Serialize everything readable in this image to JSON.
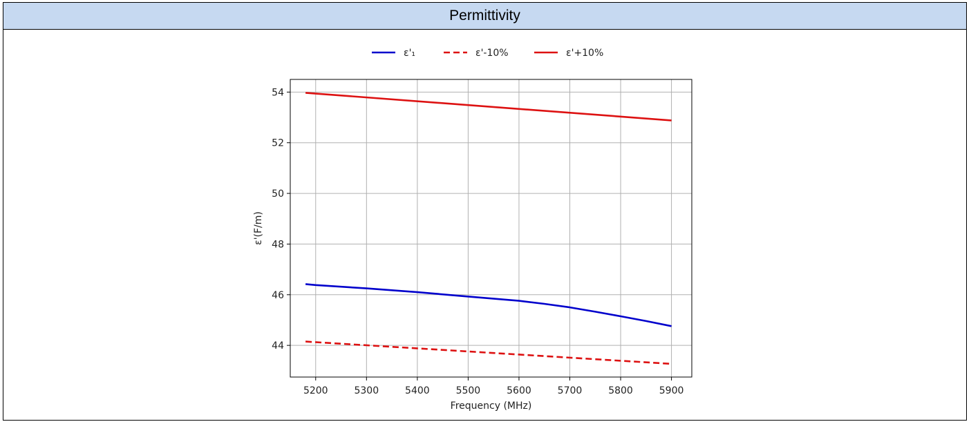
{
  "panel": {
    "title": "Permittivity",
    "header_bg": "#c6d9f1"
  },
  "chart_data": {
    "type": "line",
    "title": "",
    "xlabel": "Frequency (MHz)",
    "ylabel": "ε'(F/m)",
    "xlim": [
      5150,
      5940
    ],
    "ylim": [
      42.75,
      54.5
    ],
    "xticks": [
      5200,
      5300,
      5400,
      5500,
      5600,
      5700,
      5800,
      5900
    ],
    "yticks": [
      44,
      46,
      48,
      50,
      52,
      54
    ],
    "grid": true,
    "legend_position": "top-center",
    "legend_ncol": 3,
    "series": [
      {
        "name": "ε'₁",
        "color": "#0000cc",
        "dash": "solid",
        "x": [
          5180,
          5200,
          5300,
          5400,
          5500,
          5600,
          5650,
          5700,
          5750,
          5800,
          5850,
          5900
        ],
        "y": [
          46.42,
          46.38,
          46.25,
          46.1,
          45.93,
          45.76,
          45.64,
          45.5,
          45.33,
          45.15,
          44.96,
          44.76
        ]
      },
      {
        "name": "ε'-10%",
        "color": "#dd1111",
        "dash": "dashed",
        "x": [
          5180,
          5900
        ],
        "y": [
          44.15,
          43.27
        ]
      },
      {
        "name": "ε'+10%",
        "color": "#dd1111",
        "dash": "solid",
        "x": [
          5180,
          5900
        ],
        "y": [
          53.97,
          52.88
        ]
      }
    ]
  }
}
